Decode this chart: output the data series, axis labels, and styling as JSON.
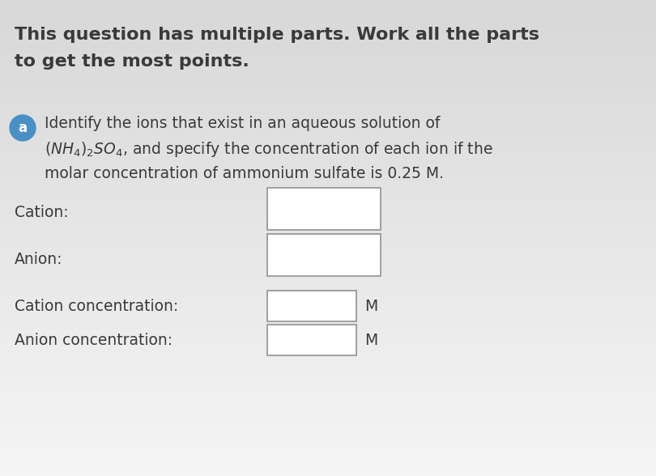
{
  "background_color": "#f0f0f0",
  "title_line1": "This question has multiple parts. Work all the parts",
  "title_line2": "to get the most points.",
  "title_fontsize": 16,
  "title_color": "#3a3a3a",
  "badge_label": "a",
  "badge_color": "#4a90c4",
  "badge_text_color": "#ffffff",
  "badge_fontsize": 12,
  "body_text_color": "#3a3a3a",
  "body_fontsize": 13.5,
  "line1": "Identify the ions that exist in an aqueous solution of",
  "line3": "molar concentration of ammonium sulfate is 0.25 M.",
  "label_cation": "Cation:",
  "label_anion": "Anion:",
  "label_cation_conc": "Cation concentration:",
  "label_anion_conc": "Anion concentration:",
  "label_M": "M",
  "box_fill": "#ffffff",
  "box_edge": "#999999"
}
